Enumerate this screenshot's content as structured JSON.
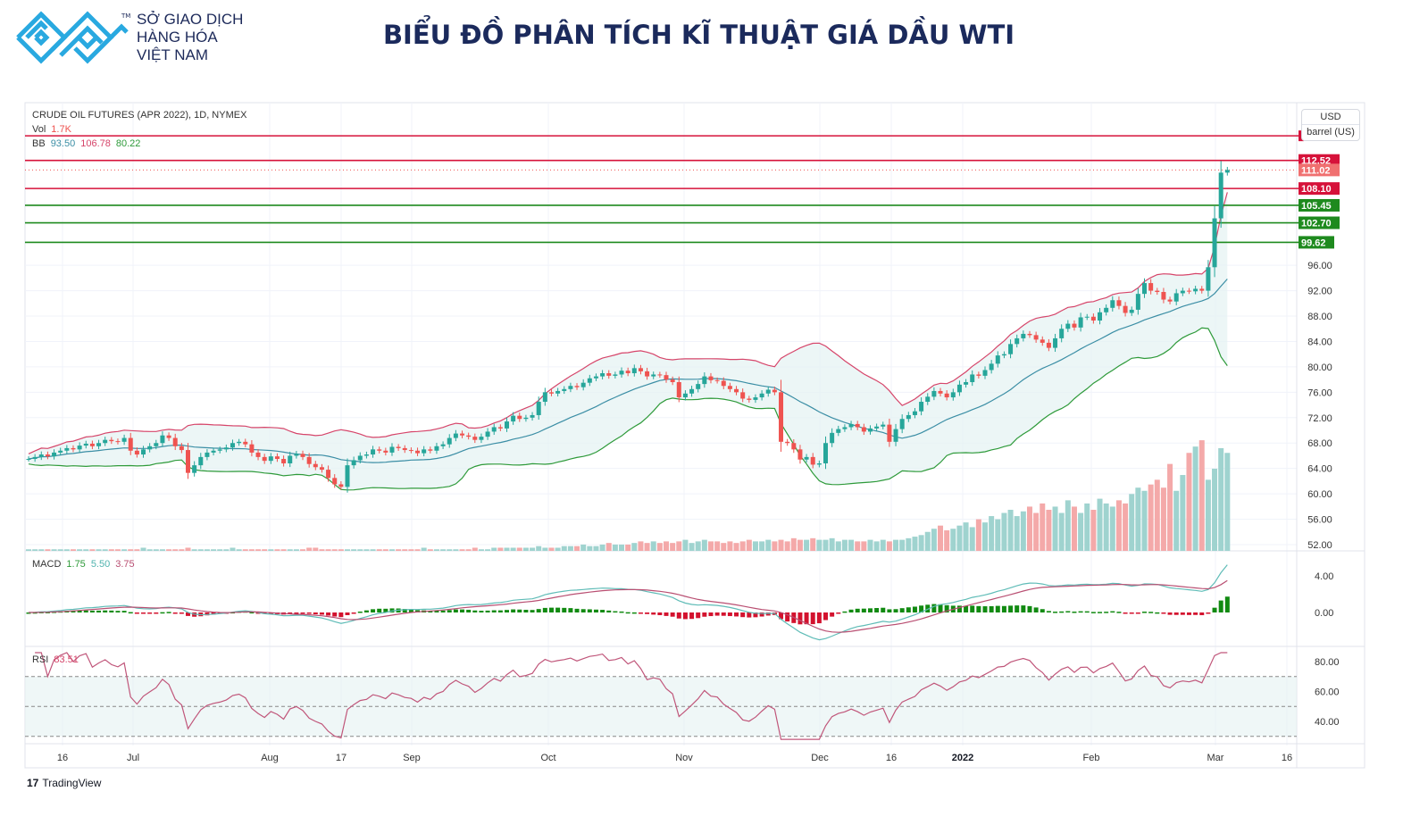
{
  "logo": {
    "lines": [
      "SỞ GIAO DỊCH",
      "HÀNG HÓA",
      "VIỆT NAM"
    ],
    "tm": "TM",
    "color": "#29a9e0"
  },
  "title": "BIỂU ĐỒ PHÂN TÍCH KĨ THUẬT GIÁ DẦU WTI",
  "legend": {
    "symbol": "CRUDE OIL FUTURES (APR 2022), 1D, NYMEX",
    "vol_label": "Vol",
    "vol_value": "1.7K",
    "bb_label": "BB",
    "bb_basis": "93.50",
    "bb_upper": "106.78",
    "bb_lower": "80.22",
    "macd_label": "MACD",
    "macd_hist": "1.75",
    "macd_line": "5.50",
    "macd_signal": "3.75",
    "rsi_label": "RSI",
    "rsi_value": "83.51"
  },
  "currency": {
    "unit": "USD",
    "measure": "barrel (US)"
  },
  "footer": {
    "brand": "TradingView"
  },
  "colors": {
    "up": "#26a69a",
    "down": "#ef5350",
    "bb_basis": "#3b8ea5",
    "bb_upper": "#d6456a",
    "bb_lower": "#2e9a3a",
    "resistance": "#d6123a",
    "support": "#1e8a1e"
  },
  "chart_data": [
    {
      "type": "candlestick",
      "title": "CRUDE OIL FUTURES (APR 2022), 1D, NYMEX",
      "x_tick_labels": [
        "16",
        "Jul",
        "Aug",
        "17",
        "Sep",
        "Oct",
        "Nov",
        "Dec",
        "16",
        "2022",
        "Feb",
        "Mar",
        "16"
      ],
      "y_tick_labels": [
        "96.00",
        "92.00",
        "88.00",
        "84.00",
        "80.00",
        "76.00",
        "72.00",
        "68.00",
        "64.00",
        "60.00",
        "56.00",
        "52.00"
      ],
      "ylim": [
        52,
        116
      ],
      "last_price": "111.02",
      "levels": [
        {
          "value": 116.4,
          "label": "",
          "kind": "resistance"
        },
        {
          "value": 112.52,
          "label": "112.52",
          "kind": "resistance"
        },
        {
          "value": 108.1,
          "label": "108.10",
          "kind": "resistance"
        },
        {
          "value": 105.45,
          "label": "105.45",
          "kind": "support"
        },
        {
          "value": 102.7,
          "label": "102.70",
          "kind": "support"
        },
        {
          "value": 99.62,
          "label": "99.62",
          "kind": "support"
        }
      ],
      "close": [
        65.5,
        65.8,
        66.2,
        65.9,
        66.5,
        66.8,
        67.2,
        67.0,
        67.6,
        67.9,
        67.5,
        68.0,
        68.5,
        68.3,
        68.2,
        68.8,
        66.8,
        66.2,
        67.0,
        67.5,
        68.0,
        69.2,
        68.8,
        67.5,
        66.9,
        63.3,
        64.5,
        65.8,
        66.5,
        66.8,
        67.0,
        67.3,
        68.0,
        68.2,
        67.8,
        66.5,
        65.8,
        65.2,
        65.9,
        65.5,
        64.8,
        66.0,
        66.3,
        65.8,
        64.7,
        64.2,
        63.8,
        62.5,
        61.5,
        61.1,
        64.5,
        65.3,
        66.0,
        66.2,
        67.0,
        66.8,
        66.5,
        67.4,
        67.2,
        66.9,
        66.8,
        66.4,
        67.0,
        66.8,
        67.5,
        67.8,
        68.8,
        69.5,
        69.2,
        69.0,
        68.5,
        69.0,
        69.8,
        70.5,
        70.3,
        71.4,
        72.3,
        71.8,
        72.0,
        72.4,
        74.5,
        76.0,
        75.8,
        76.2,
        76.5,
        77.0,
        76.8,
        77.5,
        78.2,
        78.5,
        79.0,
        78.6,
        78.8,
        79.4,
        79.0,
        79.8,
        79.3,
        78.5,
        78.8,
        78.7,
        78.0,
        77.6,
        75.2,
        75.8,
        76.5,
        77.3,
        78.5,
        77.9,
        77.8,
        77.0,
        76.5,
        76.0,
        75.0,
        74.8,
        75.2,
        75.8,
        76.4,
        76.0,
        68.2,
        68.0,
        67.0,
        65.4,
        65.8,
        64.6,
        64.8,
        68.0,
        69.6,
        70.2,
        70.5,
        71.0,
        70.5,
        69.8,
        70.3,
        70.6,
        70.9,
        68.2,
        70.2,
        71.8,
        72.4,
        73.0,
        74.5,
        75.3,
        76.2,
        75.8,
        75.2,
        76.0,
        77.2,
        77.6,
        78.8,
        78.6,
        79.5,
        80.5,
        81.8,
        82.0,
        83.6,
        84.5,
        85.2,
        85.0,
        84.3,
        83.8,
        83.0,
        84.5,
        86.0,
        86.8,
        86.2,
        87.8,
        87.9,
        87.3,
        88.6,
        89.3,
        90.5,
        89.6,
        88.5,
        89.0,
        91.5,
        93.2,
        92.0,
        91.8,
        90.6,
        90.3,
        91.6,
        92.0,
        91.9,
        92.3,
        92.0,
        95.7,
        103.4,
        110.6,
        111.02
      ],
      "volume": [
        1,
        1,
        1,
        1,
        1,
        1,
        1,
        1,
        1,
        1,
        1,
        1,
        1,
        1,
        1,
        1,
        1,
        1,
        2,
        1,
        1,
        1,
        1,
        1,
        1,
        2,
        1,
        1,
        1,
        1,
        1,
        1,
        2,
        1,
        1,
        1,
        1,
        1,
        1,
        1,
        1,
        1,
        1,
        1,
        2,
        2,
        1,
        1,
        1,
        1,
        1,
        1,
        1,
        1,
        1,
        1,
        1,
        1,
        1,
        1,
        1,
        1,
        2,
        1,
        1,
        1,
        1,
        1,
        1,
        1,
        2,
        1,
        1,
        2,
        2,
        2,
        2,
        2,
        2,
        2,
        3,
        2,
        2,
        2,
        3,
        3,
        3,
        4,
        3,
        3,
        4,
        5,
        4,
        4,
        4,
        5,
        6,
        5,
        6,
        5,
        6,
        5,
        6,
        7,
        5,
        6,
        7,
        6,
        6,
        5,
        6,
        5,
        6,
        7,
        6,
        6,
        7,
        6,
        7,
        6,
        8,
        7,
        7,
        8,
        7,
        7,
        8,
        6,
        7,
        7,
        6,
        6,
        7,
        6,
        7,
        6,
        7,
        7,
        8,
        9,
        10,
        12,
        14,
        16,
        13,
        14,
        16,
        18,
        15,
        20,
        18,
        22,
        20,
        24,
        26,
        22,
        25,
        28,
        24,
        30,
        26,
        28,
        24,
        32,
        28,
        24,
        30,
        26,
        33,
        30,
        28,
        32,
        30,
        36,
        40,
        38,
        42,
        45,
        40,
        55,
        38,
        48,
        62,
        66,
        70,
        45,
        52,
        65,
        62
      ],
      "indicators": {
        "bollinger": {
          "period": 20,
          "stddev": 2
        },
        "macd": {
          "fast": 12,
          "slow": 26,
          "signal": 9
        },
        "rsi": {
          "period": 14
        }
      },
      "macd_y_tick_labels": [
        "4.00",
        "0.00"
      ],
      "rsi_y_tick_labels": [
        "80.00",
        "60.00",
        "40.00"
      ],
      "rsi_bands": [
        70,
        50,
        30
      ]
    }
  ]
}
